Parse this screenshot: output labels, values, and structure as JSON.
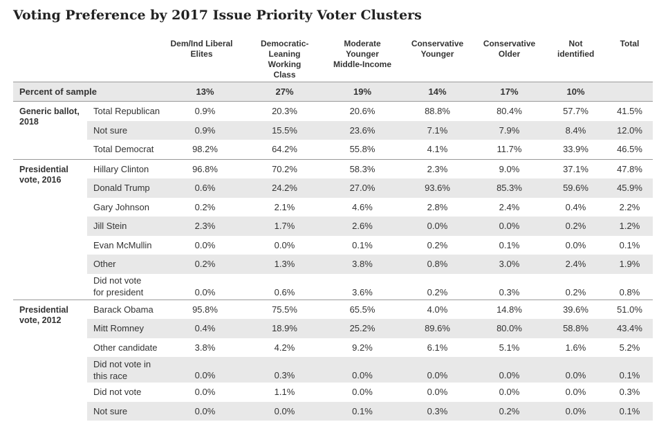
{
  "title": "Voting Preference by 2017 Issue Priority Voter Clusters",
  "chart_data": {
    "type": "table",
    "columns": [
      "Dem/Ind Liberal Elites",
      "Democratic-Leaning Working Class",
      "Moderate Younger Middle-Income",
      "Conservative Younger",
      "Conservative Older",
      "Not identified",
      "Total"
    ],
    "percent_of_sample": {
      "label": "Percent of sample",
      "values": [
        "13%",
        "27%",
        "19%",
        "14%",
        "17%",
        "10%",
        ""
      ]
    },
    "groups": [
      {
        "name": "Generic ballot, 2018",
        "rows": [
          {
            "label": "Total Republican",
            "values": [
              "0.9%",
              "20.3%",
              "20.6%",
              "88.8%",
              "80.4%",
              "57.7%",
              "41.5%"
            ]
          },
          {
            "label": "Not sure",
            "values": [
              "0.9%",
              "15.5%",
              "23.6%",
              "7.1%",
              "7.9%",
              "8.4%",
              "12.0%"
            ]
          },
          {
            "label": "Total Democrat",
            "values": [
              "98.2%",
              "64.2%",
              "55.8%",
              "4.1%",
              "11.7%",
              "33.9%",
              "46.5%"
            ]
          }
        ]
      },
      {
        "name": "Presidential vote, 2016",
        "rows": [
          {
            "label": "Hillary Clinton",
            "values": [
              "96.8%",
              "70.2%",
              "58.3%",
              "2.3%",
              "9.0%",
              "37.1%",
              "47.8%"
            ]
          },
          {
            "label": "Donald Trump",
            "values": [
              "0.6%",
              "24.2%",
              "27.0%",
              "93.6%",
              "85.3%",
              "59.6%",
              "45.9%"
            ]
          },
          {
            "label": "Gary Johnson",
            "values": [
              "0.2%",
              "2.1%",
              "4.6%",
              "2.8%",
              "2.4%",
              "0.4%",
              "2.2%"
            ]
          },
          {
            "label": "Jill Stein",
            "values": [
              "2.3%",
              "1.7%",
              "2.6%",
              "0.0%",
              "0.0%",
              "0.2%",
              "1.2%"
            ]
          },
          {
            "label": "Evan McMullin",
            "values": [
              "0.0%",
              "0.0%",
              "0.1%",
              "0.2%",
              "0.1%",
              "0.0%",
              "0.1%"
            ]
          },
          {
            "label": "Other",
            "values": [
              "0.2%",
              "1.3%",
              "3.8%",
              "0.8%",
              "3.0%",
              "2.4%",
              "1.9%"
            ]
          },
          {
            "label": "Did not vote for president",
            "values": [
              "0.0%",
              "0.6%",
              "3.6%",
              "0.2%",
              "0.3%",
              "0.2%",
              "0.8%"
            ]
          }
        ]
      },
      {
        "name": "Presidential vote, 2012",
        "rows": [
          {
            "label": "Barack Obama",
            "values": [
              "95.8%",
              "75.5%",
              "65.5%",
              "4.0%",
              "14.8%",
              "39.6%",
              "51.0%"
            ]
          },
          {
            "label": "Mitt Romney",
            "values": [
              "0.4%",
              "18.9%",
              "25.2%",
              "89.6%",
              "80.0%",
              "58.8%",
              "43.4%"
            ]
          },
          {
            "label": "Other candidate",
            "values": [
              "3.8%",
              "4.2%",
              "9.2%",
              "6.1%",
              "5.1%",
              "1.6%",
              "5.2%"
            ]
          },
          {
            "label": "Did not vote in this race",
            "values": [
              "0.0%",
              "0.3%",
              "0.0%",
              "0.0%",
              "0.0%",
              "0.0%",
              "0.1%"
            ]
          },
          {
            "label": "Did not vote",
            "values": [
              "0.0%",
              "1.1%",
              "0.0%",
              "0.0%",
              "0.0%",
              "0.0%",
              "0.3%"
            ]
          },
          {
            "label": "Not sure",
            "values": [
              "0.0%",
              "0.0%",
              "0.1%",
              "0.3%",
              "0.2%",
              "0.0%",
              "0.1%"
            ]
          }
        ]
      }
    ]
  },
  "colors": {
    "stripe": "#e8e8e8",
    "rule": "#999999",
    "text": "#333333"
  }
}
